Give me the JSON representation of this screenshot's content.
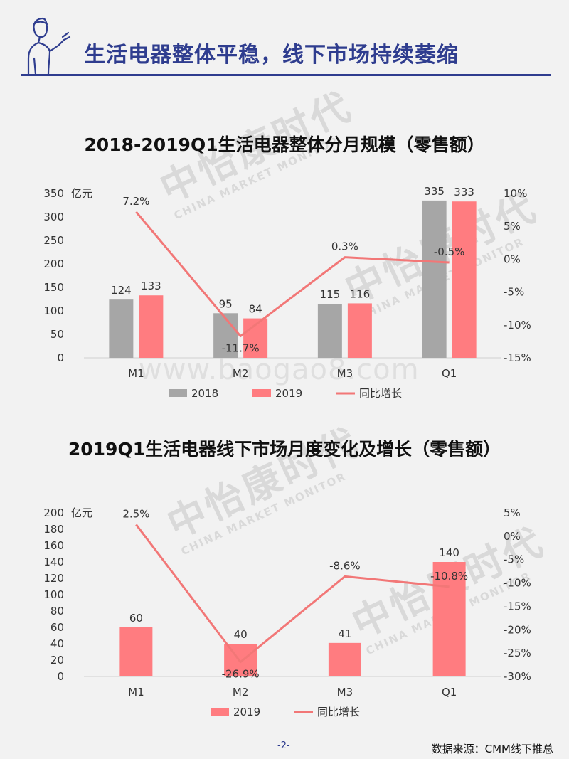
{
  "header": {
    "title": "生活电器整体平稳，线下市场持续萎缩"
  },
  "watermark": {
    "brand_cn": "中怡康时代",
    "brand_en": "CHINA MARKET MONITOR",
    "url": "www.baogao8.com"
  },
  "chart_data": [
    {
      "type": "bar",
      "title": "2018-2019Q1生活电器整体分月规模（零售额）",
      "y_unit": "亿元",
      "categories": [
        "M1",
        "M2",
        "M3",
        "Q1"
      ],
      "series": [
        {
          "name": "2018",
          "kind": "bar",
          "axis": "left",
          "color": "#a6a6a6",
          "values": [
            124,
            95,
            115,
            335
          ],
          "labels": [
            "124",
            "95",
            "115",
            "335"
          ]
        },
        {
          "name": "2019",
          "kind": "bar",
          "axis": "left",
          "color": "#ff7c80",
          "values": [
            133,
            84,
            116,
            333
          ],
          "labels": [
            "133",
            "84",
            "116",
            "333"
          ]
        },
        {
          "name": "同比增长",
          "kind": "line",
          "axis": "right",
          "color": "#f27777",
          "values": [
            7.2,
            -11.7,
            0.3,
            -0.5
          ],
          "labels": [
            "7.2%",
            "-11.7%",
            "0.3%",
            "-0.5%"
          ]
        }
      ],
      "y_left": {
        "min": 0,
        "max": 350,
        "ticks": [
          0,
          50,
          100,
          150,
          200,
          250,
          300,
          350
        ],
        "tick_labels": [
          "0",
          "50",
          "100",
          "150",
          "200",
          "250",
          "300",
          "350"
        ]
      },
      "y_right": {
        "min": -15,
        "max": 10,
        "ticks": [
          -15,
          -10,
          -5,
          0,
          5,
          10
        ],
        "tick_labels": [
          "-15%",
          "-10%",
          "-5%",
          "0%",
          "5%",
          "10%"
        ]
      },
      "legend": {
        "position": "bottom"
      },
      "grid": false
    },
    {
      "type": "bar",
      "title": "2019Q1生活电器线下市场月度变化及增长（零售额）",
      "y_unit": "亿元",
      "categories": [
        "M1",
        "M2",
        "M3",
        "Q1"
      ],
      "series": [
        {
          "name": "2019",
          "kind": "bar",
          "axis": "left",
          "color": "#ff7c80",
          "values": [
            60,
            40,
            41,
            140
          ],
          "labels": [
            "60",
            "40",
            "41",
            "140"
          ]
        },
        {
          "name": "同比增长",
          "kind": "line",
          "axis": "right",
          "color": "#f27777",
          "values": [
            2.5,
            -26.9,
            -8.6,
            -10.8
          ],
          "labels": [
            "2.5%",
            "-26.9%",
            "-8.6%",
            "-10.8%"
          ]
        }
      ],
      "y_left": {
        "min": 0,
        "max": 200,
        "ticks": [
          0,
          20,
          40,
          60,
          80,
          100,
          120,
          140,
          160,
          180,
          200
        ],
        "tick_labels": [
          "0",
          "20",
          "40",
          "60",
          "80",
          "100",
          "120",
          "140",
          "160",
          "180",
          "200"
        ]
      },
      "y_right": {
        "min": -30,
        "max": 5,
        "ticks": [
          -30,
          -25,
          -20,
          -15,
          -10,
          -5,
          0,
          5
        ],
        "tick_labels": [
          "-30%",
          "-25%",
          "-20%",
          "-15%",
          "-10%",
          "-5%",
          "0%",
          "5%"
        ]
      },
      "legend": {
        "position": "bottom"
      },
      "grid": false
    }
  ],
  "footer": {
    "page_number": "-2-",
    "source": "数据来源：CMM线下推总"
  }
}
